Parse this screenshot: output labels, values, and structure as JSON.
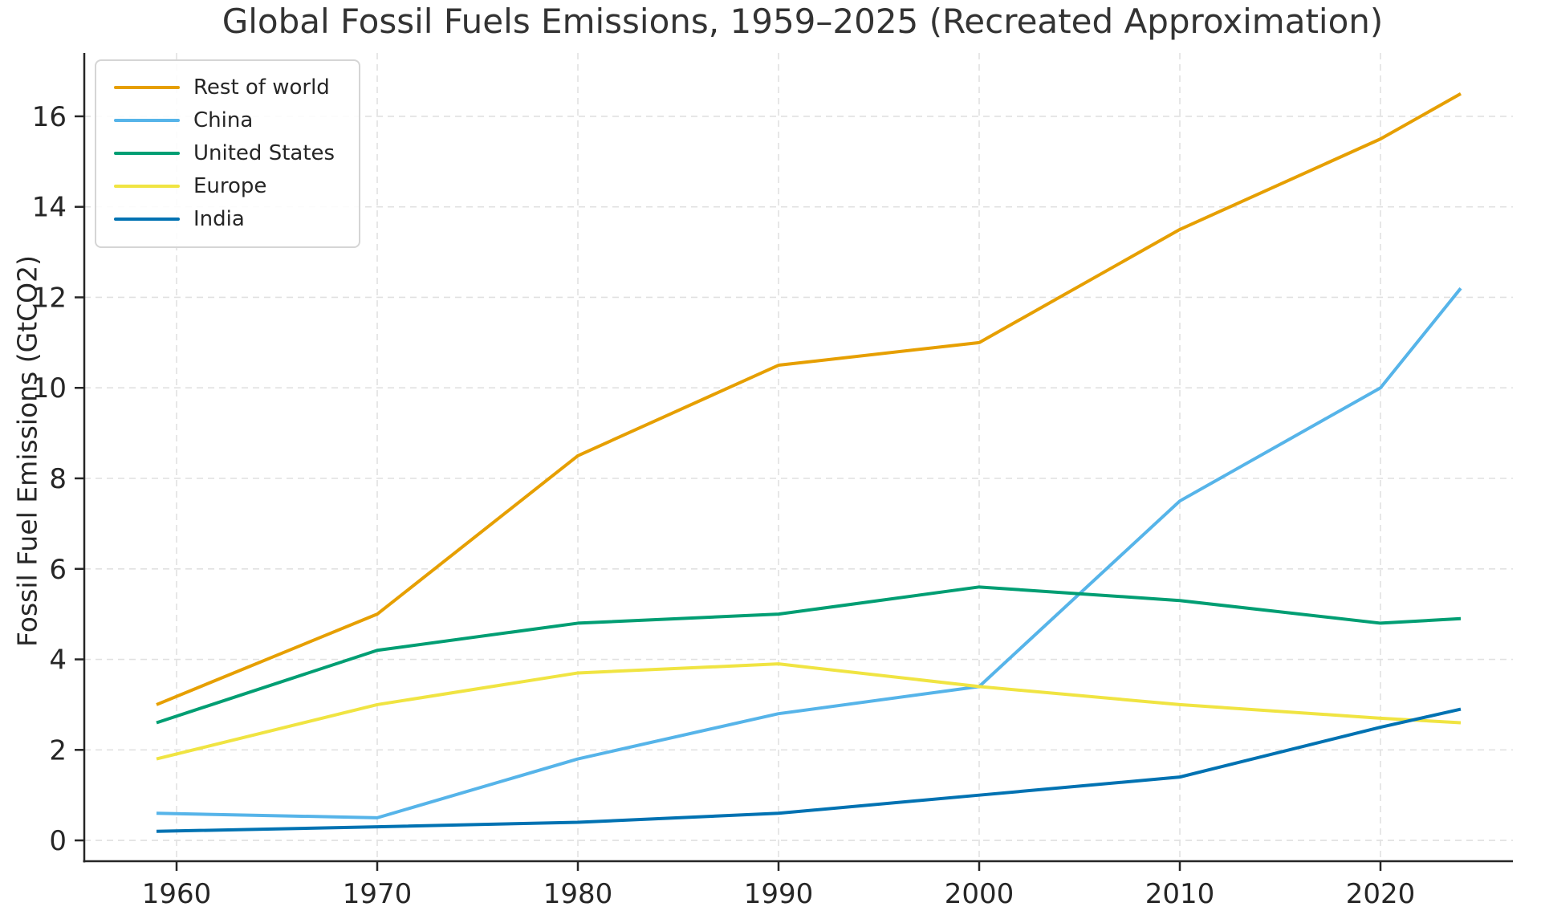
{
  "title": "Global Fossil Fuels Emissions, 1959–2025 (Recreated Approximation)",
  "colors": {
    "background": "#ffffff",
    "text": "#262626",
    "title_text": "#333333",
    "spine": "#262626",
    "grid": "#e1e1e1",
    "legend_border": "#d5d5d5"
  },
  "chart_data": {
    "type": "line",
    "title": "Global Fossil Fuels Emissions, 1959–2025 (Recreated Approximation)",
    "xlabel": "",
    "ylabel": "Fossil Fuel Emissions (GtCO2)",
    "x": [
      1959,
      1970,
      1980,
      1990,
      2000,
      2010,
      2020,
      2024
    ],
    "series": [
      {
        "name": "Rest of world",
        "color": "#E69F00",
        "values": [
          3.0,
          5.0,
          8.5,
          10.5,
          11.0,
          13.5,
          15.5,
          16.5
        ]
      },
      {
        "name": "China",
        "color": "#56B4E9",
        "values": [
          0.6,
          0.5,
          1.8,
          2.8,
          3.4,
          7.5,
          10.0,
          12.2
        ]
      },
      {
        "name": "United States",
        "color": "#009E73",
        "values": [
          2.6,
          4.2,
          4.8,
          5.0,
          5.6,
          5.3,
          4.8,
          4.9
        ]
      },
      {
        "name": "Europe",
        "color": "#F0E442",
        "values": [
          1.8,
          3.0,
          3.7,
          3.9,
          3.4,
          3.0,
          2.7,
          2.6
        ]
      },
      {
        "name": "India",
        "color": "#0072B2",
        "values": [
          0.2,
          0.3,
          0.4,
          0.6,
          1.0,
          1.4,
          2.5,
          2.9
        ]
      }
    ],
    "xticks": [
      1960,
      1970,
      1980,
      1990,
      2000,
      2010,
      2020
    ],
    "yticks": [
      0,
      2,
      4,
      6,
      8,
      10,
      12,
      14,
      16
    ],
    "xlim": [
      1955.4,
      2026.6
    ],
    "ylim": [
      -0.46,
      17.4
    ],
    "grid": true,
    "grid_style": "dashed",
    "legend_position": "upper left",
    "line_width": 4
  }
}
